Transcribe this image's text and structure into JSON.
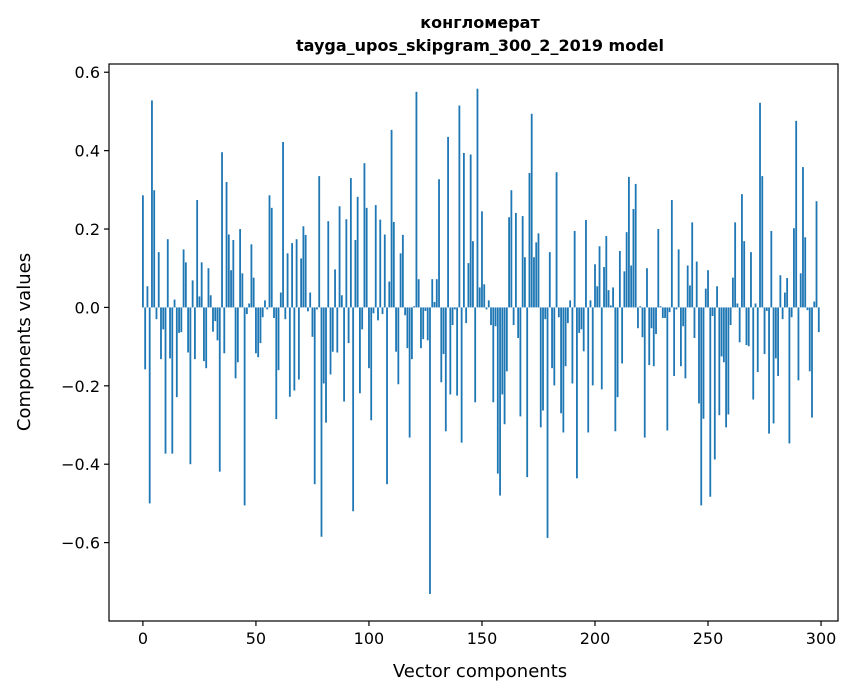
{
  "chart_data": {
    "type": "bar",
    "title": "конгломерат",
    "subtitle": "tayga_upos_skipgram_300_2_2019 model",
    "xlabel": "Vector components",
    "ylabel": "Components values",
    "xlim": [
      -15,
      307.5
    ],
    "ylim": [
      -0.8,
      0.621
    ],
    "xticks": [
      0,
      50,
      100,
      150,
      200,
      250,
      300
    ],
    "xtick_labels": [
      "0",
      "50",
      "100",
      "150",
      "200",
      "250",
      "300"
    ],
    "yticks": [
      -0.6,
      -0.4,
      -0.2,
      0.0,
      0.2,
      0.4,
      0.6
    ],
    "ytick_labels": [
      "−0.6",
      "−0.4",
      "−0.2",
      "0.0",
      "0.2",
      "0.4",
      "0.6"
    ],
    "grid": false,
    "bar_color": "#1f77b4",
    "values": [
      0.286,
      -0.158,
      0.054,
      -0.5,
      0.528,
      0.299,
      -0.03,
      0.141,
      -0.132,
      -0.056,
      -0.373,
      0.174,
      -0.13,
      -0.373,
      0.02,
      -0.229,
      -0.065,
      -0.063,
      0.148,
      0.115,
      -0.115,
      -0.4,
      0.069,
      -0.132,
      0.274,
      0.028,
      0.115,
      -0.137,
      -0.155,
      0.1,
      0.031,
      -0.062,
      -0.035,
      -0.084,
      -0.419,
      0.396,
      -0.117,
      0.32,
      0.186,
      0.095,
      0.172,
      -0.181,
      -0.14,
      0.2,
      0.087,
      -0.505,
      -0.017,
      0.01,
      0.161,
      0.076,
      -0.117,
      -0.127,
      -0.091,
      -0.025,
      0.018,
      -0.005,
      0.286,
      0.254,
      -0.027,
      -0.285,
      -0.16,
      0.038,
      0.422,
      -0.03,
      0.138,
      -0.228,
      0.164,
      -0.212,
      0.174,
      -0.184,
      0.125,
      0.207,
      0.185,
      -0.01,
      0.038,
      -0.075,
      -0.451,
      -0.005,
      0.335,
      -0.585,
      -0.194,
      -0.294,
      0.22,
      -0.171,
      -0.113,
      0.097,
      -0.115,
      0.258,
      0.031,
      -0.24,
      0.225,
      -0.091,
      0.33,
      -0.52,
      0.172,
      0.282,
      -0.219,
      -0.056,
      0.368,
      0.254,
      -0.155,
      -0.288,
      -0.015,
      0.261,
      -0.033,
      0.224,
      -0.017,
      0.186,
      -0.451,
      0.066,
      0.453,
      0.218,
      -0.113,
      -0.196,
      0.138,
      0.185,
      -0.02,
      -0.104,
      -0.332,
      -0.132,
      0.003,
      0.55,
      0.072,
      -0.104,
      -0.081,
      -0.009,
      -0.084,
      -0.731,
      0.072,
      0.014,
      0.072,
      0.327,
      -0.191,
      -0.119,
      -0.316,
      0.435,
      -0.222,
      -0.045,
      -0.005,
      -0.225,
      0.515,
      -0.345,
      0.394,
      -0.04,
      0.113,
      0.39,
      0.169,
      -0.242,
      0.558,
      0.051,
      0.245,
      0.059,
      -0.005,
      0.018,
      -0.045,
      -0.242,
      -0.048,
      -0.424,
      -0.48,
      -0.222,
      -0.298,
      -0.163,
      0.23,
      0.299,
      -0.045,
      0.241,
      -0.078,
      -0.278,
      0.233,
      0.128,
      -0.433,
      0.343,
      0.494,
      0.128,
      0.166,
      0.189,
      -0.306,
      -0.263,
      -0.03,
      -0.588,
      0.141,
      -0.155,
      -0.199,
      0.345,
      -0.025,
      -0.27,
      -0.319,
      -0.15,
      -0.04,
      0.018,
      -0.194,
      0.195,
      -0.436,
      -0.065,
      -0.056,
      -0.112,
      0.223,
      -0.319,
      0.018,
      -0.199,
      0.11,
      0.054,
      0.156,
      -0.209,
      0.103,
      0.182,
      0.044,
      0.005,
      0.051,
      -0.316,
      -0.229,
      0.144,
      -0.143,
      0.092,
      0.192,
      0.333,
      0.107,
      0.251,
      0.315,
      -0.053,
      0.003,
      -0.076,
      -0.332,
      0.1,
      -0.147,
      -0.053,
      -0.15,
      -0.068,
      0.2,
      0.003,
      -0.027,
      -0.027,
      -0.314,
      -0.012,
      0.274,
      -0.175,
      -0.005,
      0.148,
      -0.15,
      -0.048,
      -0.181,
      0.107,
      0.056,
      0.217,
      -0.078,
      0.117,
      -0.245,
      -0.505,
      -0.284,
      0.048,
      0.095,
      -0.483,
      -0.022,
      -0.388,
      0.054,
      -0.275,
      -0.125,
      -0.14,
      -0.306,
      -0.273,
      -0.045,
      0.076,
      0.217,
      0.01,
      -0.089,
      0.289,
      0.169,
      -0.096,
      -0.099,
      0.141,
      -0.235,
      0.01,
      -0.165,
      0.522,
      0.335,
      -0.119,
      -0.009,
      -0.322,
      0.195,
      -0.296,
      -0.13,
      -0.175,
      0.082,
      -0.03,
      0.038,
      0.075,
      -0.347,
      -0.025,
      0.202,
      0.476,
      -0.186,
      0.087,
      0.358,
      0.179,
      -0.007,
      -0.163,
      -0.281,
      0.015,
      0.271,
      -0.063
    ]
  }
}
